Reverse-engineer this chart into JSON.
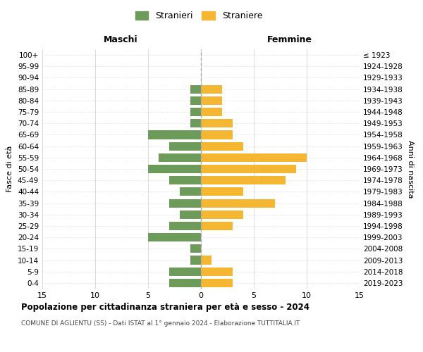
{
  "age_groups": [
    "100+",
    "95-99",
    "90-94",
    "85-89",
    "80-84",
    "75-79",
    "70-74",
    "65-69",
    "60-64",
    "55-59",
    "50-54",
    "45-49",
    "40-44",
    "35-39",
    "30-34",
    "25-29",
    "20-24",
    "15-19",
    "10-14",
    "5-9",
    "0-4"
  ],
  "birth_years": [
    "≤ 1923",
    "1924-1928",
    "1929-1933",
    "1934-1938",
    "1939-1943",
    "1944-1948",
    "1949-1953",
    "1954-1958",
    "1959-1963",
    "1964-1968",
    "1969-1973",
    "1974-1978",
    "1979-1983",
    "1984-1988",
    "1989-1993",
    "1994-1998",
    "1999-2003",
    "2004-2008",
    "2009-2013",
    "2014-2018",
    "2019-2023"
  ],
  "males": [
    0,
    0,
    0,
    1,
    1,
    1,
    1,
    5,
    3,
    4,
    5,
    3,
    2,
    3,
    2,
    3,
    5,
    1,
    1,
    3,
    3
  ],
  "females": [
    0,
    0,
    0,
    2,
    2,
    2,
    3,
    3,
    4,
    10,
    9,
    8,
    4,
    7,
    4,
    3,
    0,
    0,
    1,
    3,
    3
  ],
  "male_color": "#6d9b5a",
  "female_color": "#f5b731",
  "dashed_line_color": "#aaaaaa",
  "grid_color": "#cccccc",
  "background_color": "#ffffff",
  "title": "Popolazione per cittadinanza straniera per età e sesso - 2024",
  "subtitle": "COMUNE DI AGLIENTU (SS) - Dati ISTAT al 1° gennaio 2024 - Elaborazione TUTTITALIA.IT",
  "xlabel_left": "Maschi",
  "xlabel_right": "Femmine",
  "ylabel_left": "Fasce di età",
  "ylabel_right": "Anni di nascita",
  "legend_male": "Stranieri",
  "legend_female": "Straniere",
  "xlim": 15
}
